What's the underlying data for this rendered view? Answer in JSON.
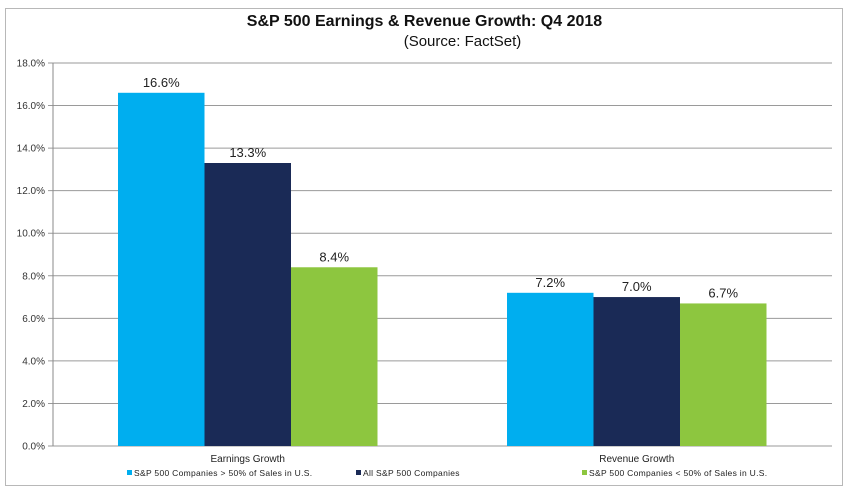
{
  "chart_data": {
    "type": "bar",
    "title": "S&P 500 Earnings & Revenue Growth: Q4 2018",
    "subtitle": "(Source: FactSet)",
    "xlabel": "",
    "ylabel": "",
    "ylim": [
      0,
      18
    ],
    "yticks": [
      0,
      2,
      4,
      6,
      8,
      10,
      12,
      14,
      16,
      18
    ],
    "ytick_labels": [
      "0.0%",
      "2.0%",
      "4.0%",
      "6.0%",
      "8.0%",
      "10.0%",
      "12.0%",
      "14.0%",
      "16.0%",
      "18.0%"
    ],
    "grid": true,
    "legend_position": "bottom",
    "categories": [
      "Earnings Growth",
      "Revenue Growth"
    ],
    "series": [
      {
        "name": "S&P 500 Companies > 50% of Sales in U.S.",
        "color": "#00aeef",
        "values": [
          16.6,
          7.2
        ],
        "labels": [
          "16.6%",
          "7.2%"
        ]
      },
      {
        "name": "All S&P 500 Companies",
        "color": "#1a2a56",
        "values": [
          13.3,
          7.0
        ],
        "labels": [
          "13.3%",
          "7.0%"
        ]
      },
      {
        "name": "S&P 500 Companies < 50% of Sales in U.S.",
        "color": "#8dc63f",
        "values": [
          8.4,
          6.7
        ],
        "labels": [
          "8.4%",
          "6.7%"
        ]
      }
    ]
  }
}
